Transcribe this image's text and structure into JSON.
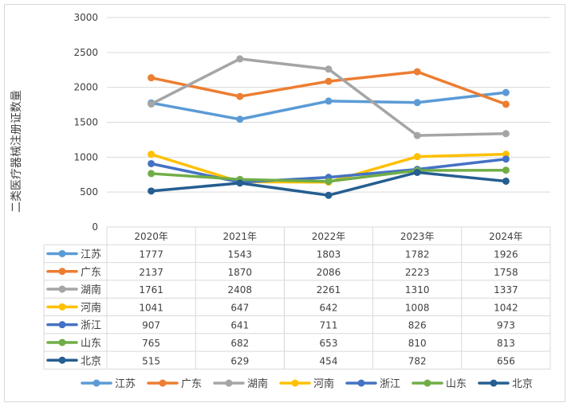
{
  "chart_data": {
    "type": "line",
    "title": "",
    "xlabel": "",
    "ylabel": "二类医疗器械注册证数量",
    "ylim": [
      0,
      3000
    ],
    "yticks": [
      0,
      500,
      1000,
      1500,
      2000,
      2500,
      3000
    ],
    "grid": true,
    "legend_position": "bottom",
    "data_table": true,
    "categories": [
      "2020年",
      "2021年",
      "2022年",
      "2023年",
      "2024年"
    ],
    "series": [
      {
        "name": "江苏",
        "color": "#5b9bd5",
        "values": [
          1777,
          1543,
          1803,
          1782,
          1926
        ]
      },
      {
        "name": "广东",
        "color": "#ed7d31",
        "values": [
          2137,
          1870,
          2086,
          2223,
          1758
        ]
      },
      {
        "name": "湖南",
        "color": "#a5a5a5",
        "values": [
          1761,
          2408,
          2261,
          1310,
          1337
        ]
      },
      {
        "name": "河南",
        "color": "#ffc000",
        "values": [
          1041,
          647,
          642,
          1008,
          1042
        ]
      },
      {
        "name": "浙江",
        "color": "#4472c4",
        "values": [
          907,
          641,
          711,
          826,
          973
        ]
      },
      {
        "name": "山东",
        "color": "#70ad47",
        "values": [
          765,
          682,
          653,
          810,
          813
        ]
      },
      {
        "name": "北京",
        "color": "#255e91",
        "values": [
          515,
          629,
          454,
          782,
          656
        ]
      }
    ]
  }
}
